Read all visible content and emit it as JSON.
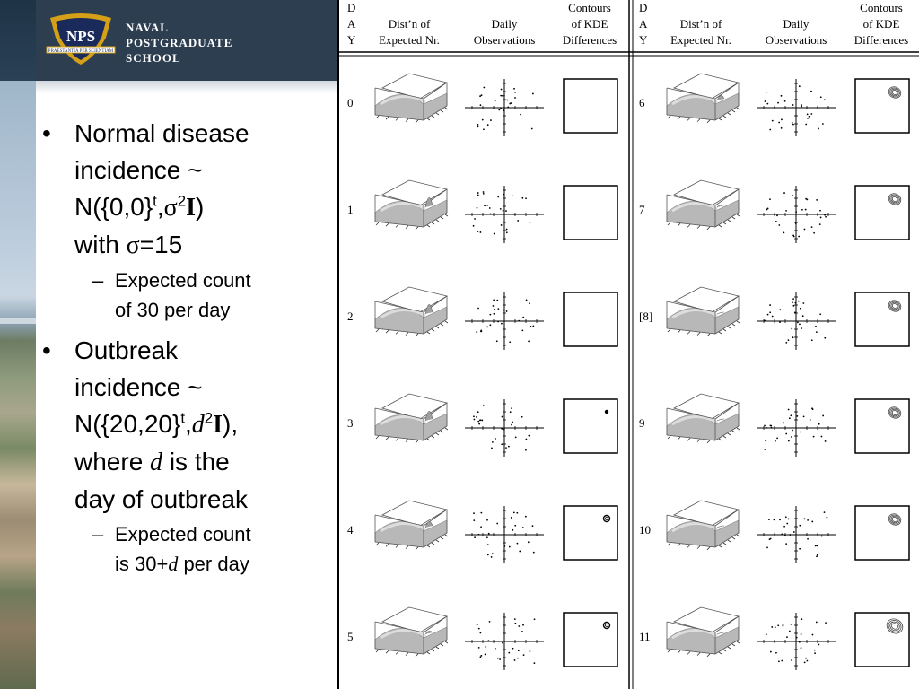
{
  "brand": {
    "logo_text_lines": [
      "NAVAL",
      "POSTGRADUATE",
      "SCHOOL"
    ],
    "shield_letters": "NPS",
    "motto": "PRAESTANTIA PER SCIENTIAM",
    "colors": {
      "band": "#2c3e50",
      "logo_gold": "#d4a017",
      "logo_navy": "#1a2a5a"
    }
  },
  "bullets": [
    {
      "lines": [
        "Normal disease",
        "incidence ~",
        "N({0,0}",
        "t",
        ",",
        "σ",
        "2",
        "I",
        ")",
        "with ",
        "σ",
        "=15"
      ],
      "sub": [
        "Expected count",
        "of 30 per day"
      ]
    },
    {
      "lines": [
        "Outbreak",
        "incidence ~",
        "N({20,20}",
        "t",
        ",",
        "d",
        "2",
        "I",
        "),",
        "where ",
        "d",
        " is the",
        "day of outbreak"
      ],
      "sub": [
        "Expected count",
        "is 30+",
        "d",
        " per day"
      ]
    }
  ],
  "figure": {
    "header_left": {
      "day_letters": [
        "D",
        "A",
        "Y"
      ],
      "col1": [
        "Dist’n of",
        "Expected Nr."
      ],
      "col2": [
        "Daily",
        "Observations"
      ],
      "col3": [
        "Contours",
        "of KDE",
        "Differences"
      ]
    },
    "header_right": {
      "day_letters": [
        "D",
        "A",
        "Y"
      ],
      "col1": [
        "Dist’n of",
        "Expected Nr."
      ],
      "col2": [
        "Daily",
        "Observations"
      ],
      "col3": [
        "Contours",
        "of KDE",
        "Differences"
      ]
    },
    "left_days": [
      "0",
      "1",
      "2",
      "3",
      "4",
      "5"
    ],
    "right_days": [
      "6",
      "7",
      "[8]",
      "9",
      "10",
      "11"
    ],
    "left_peak": [
      0,
      1,
      1,
      1,
      0.6,
      0.3
    ],
    "right_peak": [
      0.5,
      0.2,
      0.1,
      0.1,
      0.1,
      0.1
    ],
    "left_contour": [
      0,
      0,
      0,
      1,
      2,
      2
    ],
    "right_contour": [
      3,
      3,
      3,
      3,
      3,
      4
    ]
  }
}
